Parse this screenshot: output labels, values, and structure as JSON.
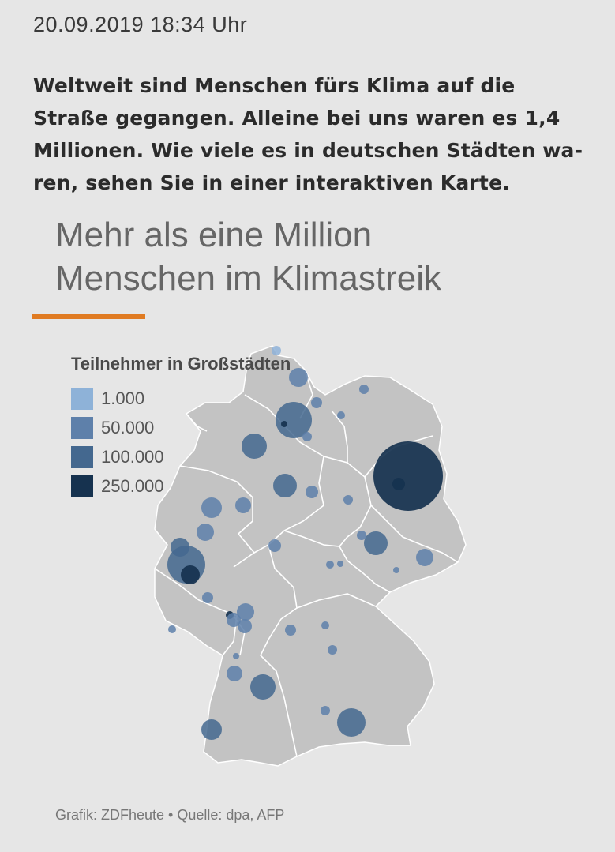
{
  "header": {
    "timestamp": "20.09.2019 18:34 Uhr",
    "teaser": "Weltweit sind Menschen fürs Klima auf die Straße gegangen. Alleine bei uns waren es 1,4 Millionen. Wie viele es in deutschen Städten wa-ren, sehen Sie in einer interaktiven Karte."
  },
  "map": {
    "title_line1": "Mehr als eine Million",
    "title_line2": "Menschen im Klimastreik",
    "accent_color": "#e07b22",
    "land_color": "#c3c3c3",
    "border_color": "#ffffff",
    "legend": {
      "title": "Teilnehmer in Großstädten",
      "items": [
        {
          "label": "1.000",
          "color": "#8eb2d8"
        },
        {
          "label": "50.000",
          "color": "#5e80aa"
        },
        {
          "label": "100.000",
          "color": "#44688f"
        },
        {
          "label": "250.000",
          "color": "#16324f"
        }
      ]
    },
    "credit": "Grafik: ZDFheute • Quelle: dpa, AFP"
  }
}
